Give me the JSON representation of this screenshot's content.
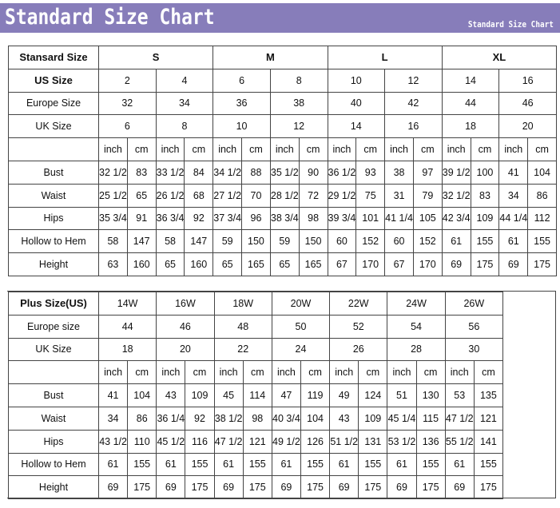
{
  "banner": {
    "title": "Standard Size Chart",
    "subtitle": "Standard Size Chart",
    "color": "#877dba"
  },
  "standard": {
    "header_label": "Stansard Size",
    "size_groups": [
      "S",
      "M",
      "L",
      "XL"
    ],
    "us_label": "US Size",
    "us": [
      "2",
      "4",
      "6",
      "8",
      "10",
      "12",
      "14",
      "16"
    ],
    "europe_label": "Europe Size",
    "europe": [
      "32",
      "34",
      "36",
      "38",
      "40",
      "42",
      "44",
      "46"
    ],
    "uk_label": "UK Size",
    "uk": [
      "6",
      "8",
      "10",
      "12",
      "14",
      "16",
      "18",
      "20"
    ],
    "units": [
      "inch",
      "cm"
    ],
    "rows": [
      {
        "label": "Bust",
        "values": [
          "32 1/2",
          "83",
          "33 1/2",
          "84",
          "34 1/2",
          "88",
          "35 1/2",
          "90",
          "36 1/2",
          "93",
          "38",
          "97",
          "39 1/2",
          "100",
          "41",
          "104"
        ]
      },
      {
        "label": "Waist",
        "values": [
          "25 1/2",
          "65",
          "26 1/2",
          "68",
          "27 1/2",
          "70",
          "28 1/2",
          "72",
          "29 1/2",
          "75",
          "31",
          "79",
          "32 1/2",
          "83",
          "34",
          "86"
        ]
      },
      {
        "label": "Hips",
        "values": [
          "35 3/4",
          "91",
          "36 3/4",
          "92",
          "37 3/4",
          "96",
          "38 3/4",
          "98",
          "39 3/4",
          "101",
          "41 1/4",
          "105",
          "42 3/4",
          "109",
          "44 1/4",
          "112"
        ]
      },
      {
        "label": "Hollow to Hem",
        "values": [
          "58",
          "147",
          "58",
          "147",
          "59",
          "150",
          "59",
          "150",
          "60",
          "152",
          "60",
          "152",
          "61",
          "155",
          "61",
          "155"
        ]
      },
      {
        "label": "Height",
        "values": [
          "63",
          "160",
          "65",
          "160",
          "65",
          "165",
          "65",
          "165",
          "67",
          "170",
          "67",
          "170",
          "69",
          "175",
          "69",
          "175"
        ]
      }
    ]
  },
  "plus": {
    "us_label": "Plus Size(US)",
    "us": [
      "14W",
      "16W",
      "18W",
      "20W",
      "22W",
      "24W",
      "26W"
    ],
    "europe_label": "Europe size",
    "europe": [
      "44",
      "46",
      "48",
      "50",
      "52",
      "54",
      "56"
    ],
    "uk_label": "UK Size",
    "uk": [
      "18",
      "20",
      "22",
      "24",
      "26",
      "28",
      "30"
    ],
    "units": [
      "inch",
      "cm"
    ],
    "rows": [
      {
        "label": "Bust",
        "values": [
          "41",
          "104",
          "43",
          "109",
          "45",
          "114",
          "47",
          "119",
          "49",
          "124",
          "51",
          "130",
          "53",
          "135"
        ]
      },
      {
        "label": "Waist",
        "values": [
          "34",
          "86",
          "36 1/4",
          "92",
          "38 1/2",
          "98",
          "40 3/4",
          "104",
          "43",
          "109",
          "45 1/4",
          "115",
          "47 1/2",
          "121"
        ]
      },
      {
        "label": "Hips",
        "values": [
          "43 1/2",
          "110",
          "45 1/2",
          "116",
          "47 1/2",
          "121",
          "49 1/2",
          "126",
          "51 1/2",
          "131",
          "53 1/2",
          "136",
          "55 1/2",
          "141"
        ]
      },
      {
        "label": "Hollow to Hem",
        "values": [
          "61",
          "155",
          "61",
          "155",
          "61",
          "155",
          "61",
          "155",
          "61",
          "155",
          "61",
          "155",
          "61",
          "155"
        ]
      },
      {
        "label": "Height",
        "values": [
          "69",
          "175",
          "69",
          "175",
          "69",
          "175",
          "69",
          "175",
          "69",
          "175",
          "69",
          "175",
          "69",
          "175"
        ]
      }
    ]
  }
}
